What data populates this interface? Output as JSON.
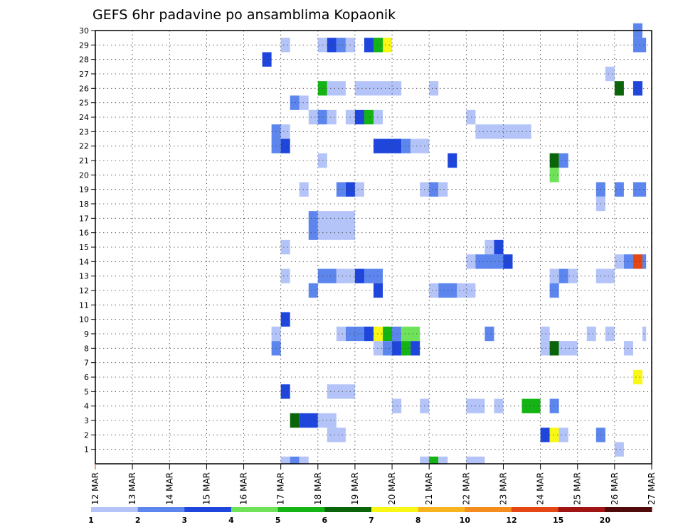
{
  "chart_data": {
    "type": "heatmap",
    "title": "GEFS 6hr padavine po ansamblima Kopaonik",
    "xlabel": "",
    "ylabel": "",
    "y_ticks": [
      1,
      2,
      3,
      4,
      5,
      6,
      7,
      8,
      9,
      10,
      11,
      12,
      13,
      14,
      15,
      16,
      17,
      18,
      19,
      20,
      21,
      22,
      23,
      24,
      25,
      26,
      27,
      28,
      29,
      30
    ],
    "ylim": [
      0,
      30
    ],
    "x_ticks": [
      "12 MAR",
      "13 MAR",
      "14 MAR",
      "15 MAR",
      "16 MAR",
      "17 MAR",
      "18 MAR",
      "19 MAR",
      "20 MAR",
      "21 MAR",
      "22 MAR",
      "23 MAR",
      "24 MAR",
      "25 MAR",
      "26 MAR",
      "27 MAR"
    ],
    "xlim": [
      0,
      15
    ],
    "grid": true,
    "colorbar": {
      "labels": [
        "1",
        "2",
        "3",
        "4",
        "5",
        "6",
        "7",
        "8",
        "10",
        "12",
        "15",
        "20"
      ],
      "colors": [
        "#b4c4f8",
        "#5c86ee",
        "#1e46dc",
        "#6ee35a",
        "#14b414",
        "#0a640a",
        "#f8f814",
        "#f8b41e",
        "#f48c1e",
        "#e44614",
        "#a01414",
        "#500a0a"
      ]
    },
    "cells": [
      {
        "x": 5.0,
        "y": 29,
        "w": 0.25,
        "c": 1
      },
      {
        "x": 6.0,
        "y": 29,
        "w": 0.25,
        "c": 1
      },
      {
        "x": 6.25,
        "y": 29,
        "w": 0.25,
        "c": 3
      },
      {
        "x": 6.5,
        "y": 29,
        "w": 0.25,
        "c": 2
      },
      {
        "x": 6.75,
        "y": 29,
        "w": 0.25,
        "c": 1
      },
      {
        "x": 7.25,
        "y": 29,
        "w": 0.25,
        "c": 3
      },
      {
        "x": 7.5,
        "y": 29,
        "w": 0.25,
        "c": 5
      },
      {
        "x": 7.75,
        "y": 29,
        "w": 0.25,
        "c": 7
      },
      {
        "x": 14.5,
        "y": 29,
        "w": 0.35,
        "c": 2
      },
      {
        "x": 14.5,
        "y": 30,
        "w": 0.25,
        "c": 2
      },
      {
        "x": 4.5,
        "y": 28,
        "w": 0.25,
        "c": 3
      },
      {
        "x": 13.75,
        "y": 27,
        "w": 0.25,
        "c": 1
      },
      {
        "x": 6.0,
        "y": 26,
        "w": 0.25,
        "c": 5
      },
      {
        "x": 6.25,
        "y": 26,
        "w": 0.5,
        "c": 1
      },
      {
        "x": 7.0,
        "y": 26,
        "w": 1.25,
        "c": 1
      },
      {
        "x": 9.0,
        "y": 26,
        "w": 0.25,
        "c": 1
      },
      {
        "x": 14.0,
        "y": 26,
        "w": 0.25,
        "c": 6
      },
      {
        "x": 14.5,
        "y": 26,
        "w": 0.25,
        "c": 3
      },
      {
        "x": 5.25,
        "y": 25,
        "w": 0.25,
        "c": 2
      },
      {
        "x": 5.5,
        "y": 25,
        "w": 0.25,
        "c": 1
      },
      {
        "x": 5.75,
        "y": 24,
        "w": 0.25,
        "c": 1
      },
      {
        "x": 6.0,
        "y": 24,
        "w": 0.25,
        "c": 2
      },
      {
        "x": 6.25,
        "y": 24,
        "w": 0.25,
        "c": 1
      },
      {
        "x": 6.75,
        "y": 24,
        "w": 0.25,
        "c": 1
      },
      {
        "x": 7.0,
        "y": 24,
        "w": 0.25,
        "c": 3
      },
      {
        "x": 7.25,
        "y": 24,
        "w": 0.25,
        "c": 5
      },
      {
        "x": 7.5,
        "y": 24,
        "w": 0.25,
        "c": 1
      },
      {
        "x": 10.0,
        "y": 24,
        "w": 0.25,
        "c": 1
      },
      {
        "x": 4.75,
        "y": 23,
        "w": 0.25,
        "c": 2
      },
      {
        "x": 5.0,
        "y": 23,
        "w": 0.25,
        "c": 1
      },
      {
        "x": 10.25,
        "y": 23,
        "w": 1.5,
        "c": 1
      },
      {
        "x": 4.75,
        "y": 22,
        "w": 0.25,
        "c": 2
      },
      {
        "x": 5.0,
        "y": 22,
        "w": 0.25,
        "c": 3
      },
      {
        "x": 7.5,
        "y": 22,
        "w": 0.75,
        "c": 3
      },
      {
        "x": 8.25,
        "y": 22,
        "w": 0.25,
        "c": 2
      },
      {
        "x": 8.5,
        "y": 22,
        "w": 0.5,
        "c": 1
      },
      {
        "x": 6.0,
        "y": 21,
        "w": 0.25,
        "c": 1
      },
      {
        "x": 9.5,
        "y": 21,
        "w": 0.25,
        "c": 3
      },
      {
        "x": 12.25,
        "y": 21,
        "w": 0.25,
        "c": 6
      },
      {
        "x": 12.5,
        "y": 21,
        "w": 0.25,
        "c": 2
      },
      {
        "x": 12.25,
        "y": 20,
        "w": 0.25,
        "c": 4
      },
      {
        "x": 5.5,
        "y": 19,
        "w": 0.25,
        "c": 1
      },
      {
        "x": 6.5,
        "y": 19,
        "w": 0.25,
        "c": 2
      },
      {
        "x": 6.75,
        "y": 19,
        "w": 0.25,
        "c": 3
      },
      {
        "x": 7.0,
        "y": 19,
        "w": 0.25,
        "c": 1
      },
      {
        "x": 8.75,
        "y": 19,
        "w": 0.25,
        "c": 1
      },
      {
        "x": 9.0,
        "y": 19,
        "w": 0.25,
        "c": 2
      },
      {
        "x": 9.25,
        "y": 19,
        "w": 0.25,
        "c": 1
      },
      {
        "x": 13.5,
        "y": 19,
        "w": 0.25,
        "c": 2
      },
      {
        "x": 14.0,
        "y": 19,
        "w": 0.25,
        "c": 2
      },
      {
        "x": 14.5,
        "y": 19,
        "w": 0.35,
        "c": 2
      },
      {
        "x": 13.5,
        "y": 18,
        "w": 0.25,
        "c": 1
      },
      {
        "x": 5.75,
        "y": 16,
        "w": 0.25,
        "c": 2
      },
      {
        "x": 6.0,
        "y": 16,
        "w": 1.0,
        "c": 1
      },
      {
        "x": 5.75,
        "y": 17,
        "w": 0.25,
        "c": 2
      },
      {
        "x": 6.0,
        "y": 17,
        "w": 1.0,
        "c": 1
      },
      {
        "x": 5.0,
        "y": 15,
        "w": 0.25,
        "c": 1
      },
      {
        "x": 10.5,
        "y": 15,
        "w": 0.25,
        "c": 1
      },
      {
        "x": 10.75,
        "y": 15,
        "w": 0.25,
        "c": 3
      },
      {
        "x": 10.0,
        "y": 14,
        "w": 0.25,
        "c": 1
      },
      {
        "x": 10.25,
        "y": 14,
        "w": 0.5,
        "c": 2
      },
      {
        "x": 10.75,
        "y": 14,
        "w": 0.25,
        "c": 2
      },
      {
        "x": 11.0,
        "y": 14,
        "w": 0.25,
        "c": 3
      },
      {
        "x": 14.0,
        "y": 14,
        "w": 0.25,
        "c": 1
      },
      {
        "x": 14.25,
        "y": 14,
        "w": 0.25,
        "c": 2
      },
      {
        "x": 14.5,
        "y": 14,
        "w": 0.25,
        "c": 10
      },
      {
        "x": 14.75,
        "y": 14,
        "w": 0.1,
        "c": 2
      },
      {
        "x": 5.0,
        "y": 13,
        "w": 0.25,
        "c": 1
      },
      {
        "x": 6.0,
        "y": 13,
        "w": 0.5,
        "c": 2
      },
      {
        "x": 6.5,
        "y": 13,
        "w": 0.5,
        "c": 1
      },
      {
        "x": 7.0,
        "y": 13,
        "w": 0.25,
        "c": 3
      },
      {
        "x": 7.25,
        "y": 13,
        "w": 0.5,
        "c": 2
      },
      {
        "x": 12.25,
        "y": 13,
        "w": 0.25,
        "c": 1
      },
      {
        "x": 12.5,
        "y": 13,
        "w": 0.25,
        "c": 2
      },
      {
        "x": 12.75,
        "y": 13,
        "w": 0.25,
        "c": 1
      },
      {
        "x": 13.5,
        "y": 13,
        "w": 0.5,
        "c": 1
      },
      {
        "x": 5.75,
        "y": 12,
        "w": 0.25,
        "c": 2
      },
      {
        "x": 7.5,
        "y": 12,
        "w": 0.25,
        "c": 3
      },
      {
        "x": 9.0,
        "y": 12,
        "w": 0.25,
        "c": 1
      },
      {
        "x": 9.25,
        "y": 12,
        "w": 0.5,
        "c": 2
      },
      {
        "x": 9.75,
        "y": 12,
        "w": 0.5,
        "c": 1
      },
      {
        "x": 12.25,
        "y": 12,
        "w": 0.25,
        "c": 2
      },
      {
        "x": 5.0,
        "y": 10,
        "w": 0.25,
        "c": 3
      },
      {
        "x": 4.75,
        "y": 9,
        "w": 0.25,
        "c": 1
      },
      {
        "x": 6.5,
        "y": 9,
        "w": 0.25,
        "c": 1
      },
      {
        "x": 6.75,
        "y": 9,
        "w": 0.5,
        "c": 2
      },
      {
        "x": 7.25,
        "y": 9,
        "w": 0.25,
        "c": 3
      },
      {
        "x": 7.5,
        "y": 9,
        "w": 0.25,
        "c": 7
      },
      {
        "x": 7.75,
        "y": 9,
        "w": 0.25,
        "c": 5
      },
      {
        "x": 8.0,
        "y": 9,
        "w": 0.25,
        "c": 2
      },
      {
        "x": 8.25,
        "y": 9,
        "w": 0.5,
        "c": 4
      },
      {
        "x": 10.5,
        "y": 9,
        "w": 0.25,
        "c": 2
      },
      {
        "x": 12.0,
        "y": 9,
        "w": 0.25,
        "c": 1
      },
      {
        "x": 13.25,
        "y": 9,
        "w": 0.25,
        "c": 1
      },
      {
        "x": 13.75,
        "y": 9,
        "w": 0.25,
        "c": 1
      },
      {
        "x": 14.75,
        "y": 9,
        "w": 0.1,
        "c": 1
      },
      {
        "x": 4.75,
        "y": 8,
        "w": 0.25,
        "c": 2
      },
      {
        "x": 7.5,
        "y": 8,
        "w": 0.25,
        "c": 1
      },
      {
        "x": 7.75,
        "y": 8,
        "w": 0.25,
        "c": 2
      },
      {
        "x": 8.0,
        "y": 8,
        "w": 0.25,
        "c": 3
      },
      {
        "x": 8.25,
        "y": 8,
        "w": 0.25,
        "c": 5
      },
      {
        "x": 8.5,
        "y": 8,
        "w": 0.25,
        "c": 3
      },
      {
        "x": 12.0,
        "y": 8,
        "w": 0.25,
        "c": 1
      },
      {
        "x": 12.25,
        "y": 8,
        "w": 0.25,
        "c": 6
      },
      {
        "x": 12.5,
        "y": 8,
        "w": 0.5,
        "c": 1
      },
      {
        "x": 14.25,
        "y": 8,
        "w": 0.25,
        "c": 1
      },
      {
        "x": 14.5,
        "y": 6,
        "w": 0.25,
        "c": 7
      },
      {
        "x": 5.0,
        "y": 5,
        "w": 0.25,
        "c": 3
      },
      {
        "x": 6.25,
        "y": 5,
        "w": 0.75,
        "c": 1
      },
      {
        "x": 8.0,
        "y": 4,
        "w": 0.25,
        "c": 1
      },
      {
        "x": 8.75,
        "y": 4,
        "w": 0.25,
        "c": 1
      },
      {
        "x": 10.0,
        "y": 4,
        "w": 0.5,
        "c": 1
      },
      {
        "x": 10.75,
        "y": 4,
        "w": 0.25,
        "c": 1
      },
      {
        "x": 11.5,
        "y": 4,
        "w": 0.5,
        "c": 5
      },
      {
        "x": 12.25,
        "y": 4,
        "w": 0.25,
        "c": 2
      },
      {
        "x": 5.25,
        "y": 3,
        "w": 0.25,
        "c": 6
      },
      {
        "x": 5.5,
        "y": 3,
        "w": 0.5,
        "c": 3
      },
      {
        "x": 6.0,
        "y": 3,
        "w": 0.5,
        "c": 1
      },
      {
        "x": 6.25,
        "y": 2,
        "w": 0.5,
        "c": 1
      },
      {
        "x": 12.0,
        "y": 2,
        "w": 0.25,
        "c": 3
      },
      {
        "x": 12.25,
        "y": 2,
        "w": 0.25,
        "c": 7
      },
      {
        "x": 12.5,
        "y": 2,
        "w": 0.25,
        "c": 1
      },
      {
        "x": 13.5,
        "y": 2,
        "w": 0.25,
        "c": 2
      },
      {
        "x": 14.0,
        "y": 1,
        "w": 0.25,
        "c": 1
      },
      {
        "x": 5.0,
        "y": 0,
        "w": 0.25,
        "c": 1
      },
      {
        "x": 5.25,
        "y": 0,
        "w": 0.25,
        "c": 2
      },
      {
        "x": 5.5,
        "y": 0,
        "w": 0.25,
        "c": 1
      },
      {
        "x": 8.75,
        "y": 0,
        "w": 0.25,
        "c": 1
      },
      {
        "x": 9.0,
        "y": 0,
        "w": 0.25,
        "c": 5
      },
      {
        "x": 9.25,
        "y": 0,
        "w": 0.25,
        "c": 1
      },
      {
        "x": 10.0,
        "y": 0,
        "w": 0.5,
        "c": 1
      }
    ]
  }
}
